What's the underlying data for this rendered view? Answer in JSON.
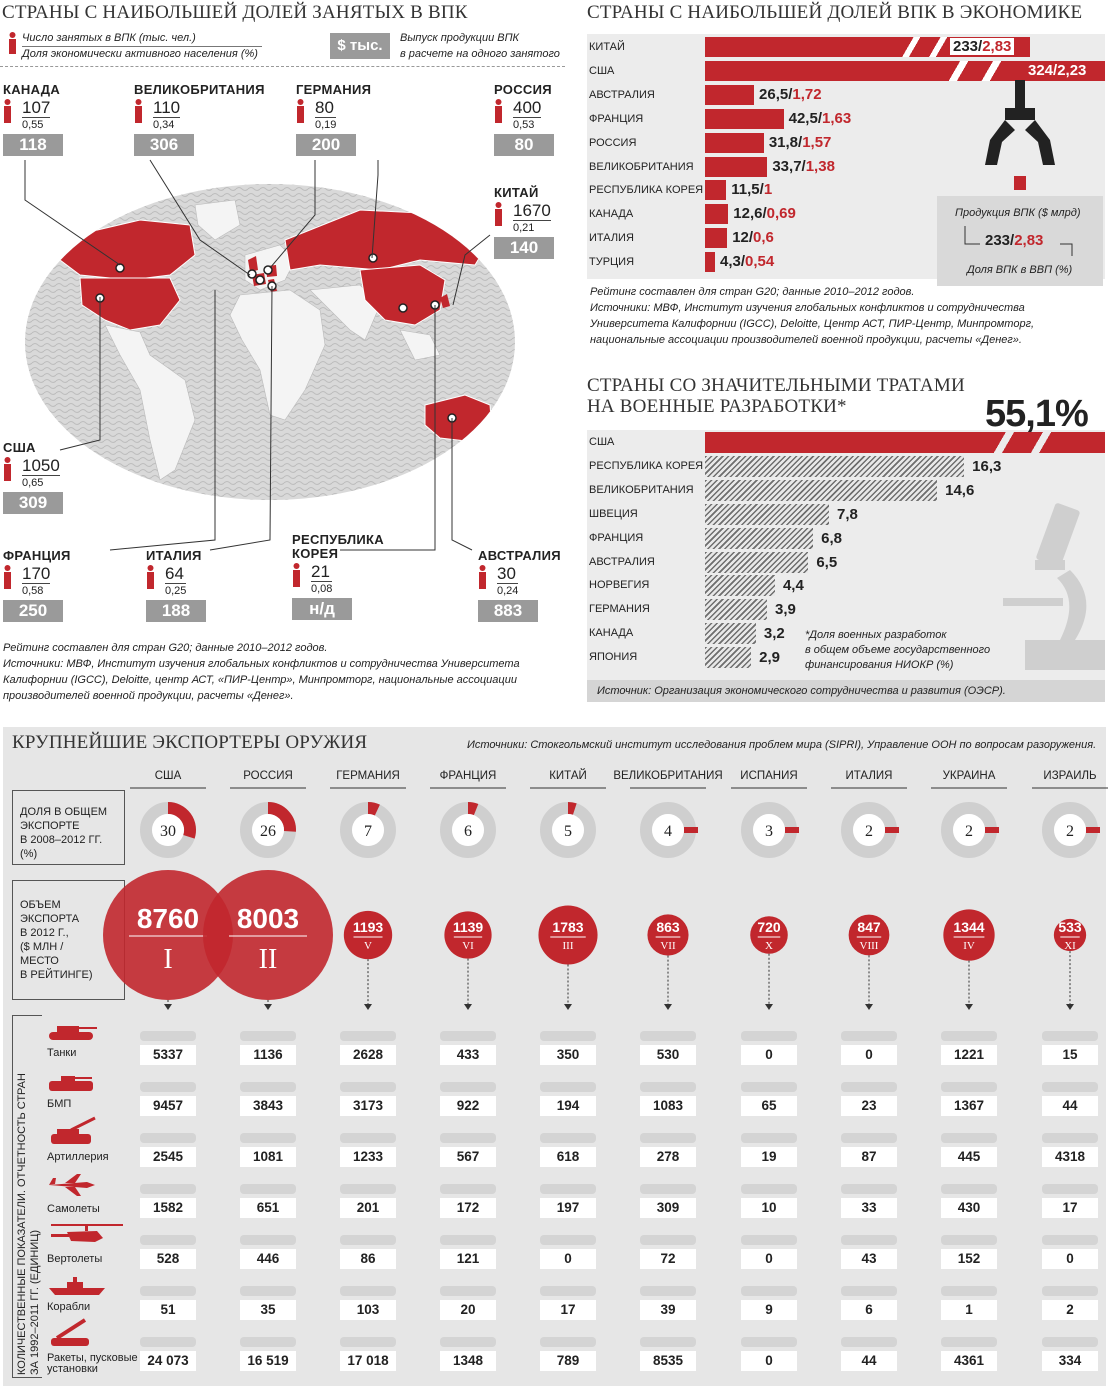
{
  "section1": {
    "title": "СТРАНЫ С НАИБОЛЬШЕЙ ДОЛЕЙ ЗАНЯТЫХ В ВПК",
    "legend_line1": "Число занятых в ВПК (тыс. чел.)",
    "legend_line2": "Доля экономически активного населения (%)",
    "legend_badge": "$ тыс.",
    "legend_line3": "Выпуск продукции ВПК",
    "legend_line4": "в расчете на одного занятого",
    "countries": [
      {
        "name": "КАНАДА",
        "employed": "107",
        "share": "0,55",
        "output": "118"
      },
      {
        "name": "ВЕЛИКОБРИТАНИЯ",
        "employed": "110",
        "share": "0,34",
        "output": "306"
      },
      {
        "name": "ГЕРМАНИЯ",
        "employed": "80",
        "share": "0,19",
        "output": "200"
      },
      {
        "name": "РОССИЯ",
        "employed": "400",
        "share": "0,53",
        "output": "80"
      },
      {
        "name": "КИТАЙ",
        "employed": "1670",
        "share": "0,21",
        "output": "140"
      },
      {
        "name": "США",
        "employed": "1050",
        "share": "0,65",
        "output": "309"
      },
      {
        "name": "ФРАНЦИЯ",
        "employed": "170",
        "share": "0,58",
        "output": "250"
      },
      {
        "name": "ИТАЛИЯ",
        "employed": "64",
        "share": "0,25",
        "output": "188"
      },
      {
        "name": "РЕСПУБЛИКА КОРЕЯ",
        "employed": "21",
        "share": "0,08",
        "output": "н/д"
      },
      {
        "name": "АВСТРАЛИЯ",
        "employed": "30",
        "share": "0,24",
        "output": "883"
      }
    ],
    "footnote1": "Рейтинг составлен для стран G20; данные 2010–2012 годов.",
    "footnote2": "Источники: МВФ, Институт изучения глобальных конфликтов и сотрудничества Университета Калифорнии (IGCC), Deloitte, центр АСТ, «ПИР-Центр», Минпромторг, национальные ассоциации производителей военной продукции, расчеты «Денег»."
  },
  "section2": {
    "title": "СТРАНЫ С НАИБОЛЬШЕЙ ДОЛЕЙ ВПК В ЭКОНОМИКЕ",
    "legend_top": "Продукция ВПК ($ млрд)",
    "legend_value_black": "233/",
    "legend_value_red": "2,83",
    "legend_bottom": "Доля ВПК в ВВП (%)",
    "footnote1": "Рейтинг составлен для стран G20; данные 2010–2012 годов.",
    "footnote2": "Источники: МВФ, Институт изучения глобальных конфликтов и сотрудничества Университета Калифорнии (IGCC), Deloitte, Центр АСТ, ПИР-Центр, Минпромторг, национальные ассоциации производителей военной продукции, расчеты «Денег»."
  },
  "section3": {
    "title1": "СТРАНЫ СО ЗНАЧИТЕЛЬНЫМИ ТРАТАМИ",
    "title2": "НА ВОЕННЫЕ РАЗРАБОТКИ*",
    "big_value": "55,1%",
    "note1": "*Доля военных разработок",
    "note2": "в общем объеме государственного",
    "note3": "финансирования НИОКР (%)",
    "source": "Источник: Организация экономического сотрудничества и развития (ОЭСР)."
  },
  "section4": {
    "title": "КРУПНЕЙШИЕ ЭКСПОРТЕРЫ ОРУЖИЯ",
    "sources": "Источники: Стокгольмский институт исследования проблем мира (SIPRI), Управление ООН по вопросам разоружения.",
    "label_share": [
      "ДОЛЯ В ОБЩЕМ",
      "ЭКСПОРТЕ",
      "В 2008–2012 ГГ.",
      "(%)"
    ],
    "label_volume": [
      "ОБЪЕМ",
      "ЭКСПОРТА",
      "В 2012 Г.,",
      "($ МЛН /",
      "МЕСТО",
      "В РЕЙТИНГЕ)"
    ],
    "side_label1": "КОЛИЧЕСТВЕННЫЕ ПОКАЗАТЕЛИ. ОТЧЕТНОСТЬ СТРАН",
    "side_label2": "ЗА 1992–2011 ГГ. (ЕДИНИЦ)",
    "rows": [
      "Танки",
      "БМП",
      "Артиллерия",
      "Самолеты",
      "Вертолеты",
      "Корабли",
      "Ракеты, пусковые установки"
    ]
  },
  "chart_data": [
    {
      "type": "bar",
      "title": "СТРАНЫ С НАИБОЛЬШЕЙ ДОЛЕЙ ВПК В ЭКОНОМИКЕ",
      "categories": [
        "КИТАЙ",
        "США",
        "АВСТРАЛИЯ",
        "ФРАНЦИЯ",
        "РОССИЯ",
        "ВЕЛИКОБРИТАНИЯ",
        "РЕСПУБЛИКА КОРЕЯ",
        "КАНАДА",
        "ИТАЛИЯ",
        "ТУРЦИЯ"
      ],
      "series": [
        {
          "values": [
            233,
            324,
            26.5,
            42.5,
            31.8,
            33.7,
            11.5,
            12.6,
            12,
            4.3
          ],
          "labels": [
            "233",
            "324",
            "26,5",
            "42,5",
            "31,8",
            "33,7",
            "11,5",
            "12,6",
            "12",
            "4,3"
          ]
        },
        {
          "values": [
            2.83,
            2.23,
            1.72,
            1.63,
            1.57,
            1.38,
            1,
            0.69,
            0.6,
            0.54
          ],
          "labels": [
            "2,83",
            "2,23",
            "1,72",
            "1,63",
            "1,57",
            "1,38",
            "1",
            "0,69",
            "0,6",
            "0,54"
          ]
        }
      ]
    },
    {
      "type": "bar",
      "title": "СТРАНЫ СО ЗНАЧИТЕЛЬНЫМИ ТРАТАМИ НА ВОЕННЫЕ РАЗРАБОТКИ*",
      "categories": [
        "США",
        "РЕСПУБЛИКА КОРЕЯ",
        "ВЕЛИКОБРИТАНИЯ",
        "ШВЕЦИЯ",
        "ФРАНЦИЯ",
        "АВСТРАЛИЯ",
        "НОРВЕГИЯ",
        "ГЕРМАНИЯ",
        "КАНАДА",
        "ЯПОНИЯ"
      ],
      "values": [
        55.1,
        16.3,
        14.6,
        7.8,
        6.8,
        6.5,
        4.4,
        3.9,
        3.2,
        2.9
      ],
      "labels": [
        "55,1%",
        "16,3",
        "14,6",
        "7,8",
        "6,8",
        "6,5",
        "4,4",
        "3,9",
        "3,2",
        "2,9"
      ]
    },
    {
      "type": "table",
      "title": "КРУПНЕЙШИЕ ЭКСПОРТЕРЫ ОРУЖИЯ",
      "countries": [
        "США",
        "РОССИЯ",
        "ГЕРМАНИЯ",
        "ФРАНЦИЯ",
        "КИТАЙ",
        "ВЕЛИКОБРИТАНИЯ",
        "ИСПАНИЯ",
        "ИТАЛИЯ",
        "УКРАИНА",
        "ИЗРАИЛЬ"
      ],
      "share_pct": [
        30,
        26,
        7,
        6,
        5,
        4,
        3,
        2,
        2,
        2
      ],
      "volume_2012": [
        8760,
        8003,
        1193,
        1139,
        1783,
        863,
        720,
        847,
        1344,
        533
      ],
      "volume_labels": [
        "8760",
        "8003",
        "1193",
        "1139",
        "1783",
        "863",
        "720",
        "847",
        "1344",
        "533"
      ],
      "rank": [
        "I",
        "II",
        "V",
        "VI",
        "III",
        "VII",
        "X",
        "VIII",
        "IV",
        "XI"
      ],
      "units": {
        "Танки": [
          "5337",
          "1136",
          "2628",
          "433",
          "350",
          "530",
          "0",
          "0",
          "1221",
          "15"
        ],
        "БМП": [
          "9457",
          "3843",
          "3173",
          "922",
          "194",
          "1083",
          "65",
          "23",
          "1367",
          "44"
        ],
        "Артиллерия": [
          "2545",
          "1081",
          "1233",
          "567",
          "618",
          "278",
          "19",
          "87",
          "445",
          "4318"
        ],
        "Самолеты": [
          "1582",
          "651",
          "201",
          "172",
          "197",
          "309",
          "10",
          "33",
          "430",
          "17"
        ],
        "Вертолеты": [
          "528",
          "446",
          "86",
          "121",
          "0",
          "72",
          "0",
          "43",
          "152",
          "0"
        ],
        "Корабли": [
          "51",
          "35",
          "103",
          "20",
          "17",
          "39",
          "9",
          "6",
          "1",
          "2"
        ],
        "Ракеты, пусковые установки": [
          "24 073",
          "16 519",
          "17 018",
          "1348",
          "789",
          "8535",
          "0",
          "44",
          "4361",
          "334"
        ]
      }
    }
  ],
  "colors": {
    "accent": "#c1272d",
    "gray_box": "#9a9a9a",
    "panel": "#e6e6e6"
  }
}
